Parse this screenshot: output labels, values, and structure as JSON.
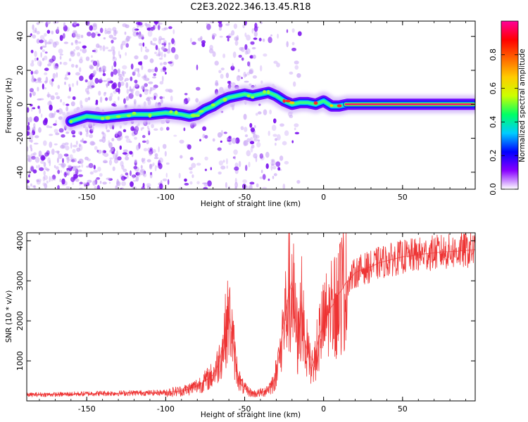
{
  "page_title": "C2E3.2022.346.13.45.R18",
  "chart_data": [
    {
      "type": "heatmap",
      "title": "C2E3.2022.346.13.45.R18",
      "xlabel": "Height of straight line (km)",
      "ylabel": "Frequency (Hz)",
      "xlim": [
        -188,
        96
      ],
      "ylim": [
        -50,
        49
      ],
      "xticks": [
        -150,
        -100,
        -50,
        0,
        50
      ],
      "xtick_labels": [
        "-150",
        "-100",
        "-50",
        "0",
        "50"
      ],
      "yticks": [
        -40,
        -20,
        0,
        20,
        40
      ],
      "ytick_labels": [
        "-40",
        "-20",
        "0",
        "20",
        "40"
      ],
      "ridge": {
        "x": [
          -160,
          -150,
          -140,
          -130,
          -120,
          -110,
          -100,
          -90,
          -85,
          -80,
          -75,
          -70,
          -65,
          -60,
          -55,
          -50,
          -45,
          -40,
          -35,
          -30,
          -25,
          -20,
          -15,
          -10,
          -5,
          0,
          5,
          10,
          15,
          95
        ],
        "y": [
          -10,
          -7,
          -8,
          -7,
          -6,
          -6,
          -5,
          -6,
          -7,
          -6,
          -3,
          -1,
          2,
          4,
          5,
          6,
          5,
          6,
          7,
          5,
          2,
          0,
          1,
          1,
          0,
          2,
          -1,
          -1,
          0,
          0
        ]
      },
      "colorbar": {
        "label": "Normalized spectral amplitude",
        "min": 0.0,
        "max": 1.0,
        "ticks": [
          0.0,
          0.2,
          0.4,
          0.6,
          0.8
        ],
        "tick_labels": [
          "0.0",
          "0.2",
          "0.4",
          "0.6",
          "0.8"
        ],
        "colormap": [
          "#ffffff",
          "#8800ff",
          "#0000ff",
          "#00ccff",
          "#00ff66",
          "#ccff00",
          "#ffcc00",
          "#ff6600",
          "#ff0000",
          "#ff0099"
        ]
      }
    },
    {
      "type": "line",
      "xlabel": "Height of straight line (km)",
      "ylabel": "SNR (10 * v/v)",
      "xlim": [
        -188,
        96
      ],
      "ylim": [
        0,
        4200
      ],
      "xticks": [
        -150,
        -100,
        -50,
        0,
        50
      ],
      "xtick_labels": [
        "-150",
        "-100",
        "-50",
        "0",
        "50"
      ],
      "yticks": [
        1000,
        2000,
        3000,
        4000
      ],
      "ytick_labels": [
        "1000",
        "2000",
        "3000",
        "4000"
      ],
      "series": [
        {
          "name": "SNR",
          "color": "#ee3333",
          "x": [
            -188,
            -180,
            -170,
            -160,
            -150,
            -140,
            -130,
            -120,
            -110,
            -100,
            -90,
            -85,
            -80,
            -75,
            -70,
            -67,
            -64,
            -62,
            -60,
            -58,
            -56,
            -54,
            -52,
            -50,
            -48,
            -46,
            -44,
            -42,
            -40,
            -38,
            -36,
            -34,
            -32,
            -30,
            -28,
            -26,
            -24,
            -22,
            -20,
            -18,
            -16,
            -14,
            -12,
            -10,
            -8,
            -6,
            -4,
            -2,
            0,
            2,
            4,
            6,
            8,
            10,
            12,
            14,
            16,
            18,
            20,
            25,
            30,
            35,
            40,
            45,
            50,
            55,
            60,
            65,
            70,
            75,
            80,
            85,
            90,
            96
          ],
          "y": [
            150,
            160,
            160,
            170,
            180,
            190,
            190,
            200,
            200,
            210,
            250,
            300,
            380,
            500,
            650,
            900,
            1300,
            1800,
            2100,
            1700,
            1000,
            600,
            400,
            300,
            250,
            200,
            180,
            190,
            200,
            230,
            280,
            350,
            450,
            700,
            1200,
            1700,
            2200,
            2700,
            3000,
            2000,
            1400,
            2500,
            1500,
            1200,
            800,
            1000,
            1400,
            1700,
            1900,
            2100,
            2300,
            2400,
            2550,
            2700,
            2800,
            2950,
            3000,
            3100,
            3200,
            3300,
            3350,
            3450,
            3500,
            3550,
            3600,
            3620,
            3650,
            3680,
            3700,
            3720,
            3730,
            3740,
            3760,
            3780
          ]
        }
      ]
    }
  ]
}
